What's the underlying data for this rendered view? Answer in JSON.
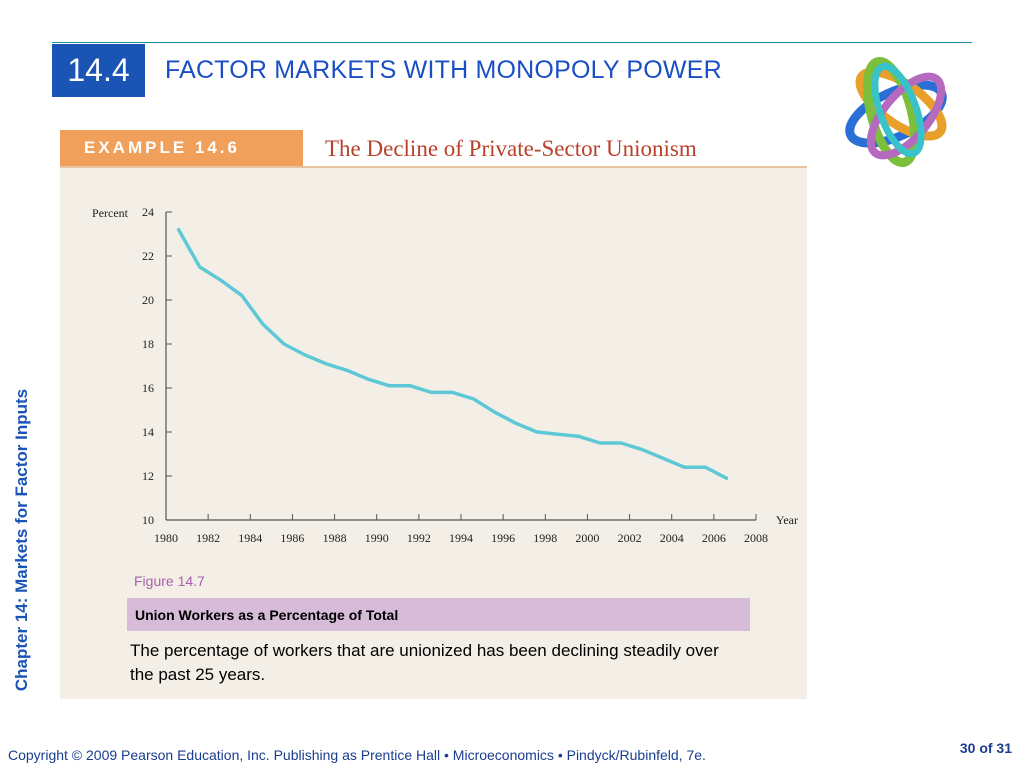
{
  "header": {
    "section": "14.4",
    "title": "FACTOR MARKETS WITH MONOPOLY POWER"
  },
  "sidebar": {
    "chapter": "Chapter 14: Markets for Factor Inputs"
  },
  "example": {
    "tag": "EXAMPLE 14.6",
    "title": "The Decline of Private-Sector Unionism"
  },
  "chart_data": {
    "type": "line",
    "ylabel": "Percent",
    "xlabel": "Year",
    "ylim": [
      10,
      24
    ],
    "xlim": [
      1980,
      2008
    ],
    "y_ticks": [
      10,
      12,
      14,
      16,
      18,
      20,
      22,
      24
    ],
    "x_ticks": [
      1980,
      1982,
      1984,
      1986,
      1988,
      1990,
      1992,
      1994,
      1996,
      1998,
      2000,
      2002,
      2004,
      2006,
      2008
    ],
    "line_color": "#5ec8d6",
    "x": [
      1980.6,
      1981.6,
      1982.6,
      1983.6,
      1984.6,
      1985.6,
      1986.6,
      1987.6,
      1988.6,
      1989.6,
      1990.6,
      1991.6,
      1992.6,
      1993.6,
      1994.6,
      1995.6,
      1996.6,
      1997.6,
      1998.6,
      1999.6,
      2000.6,
      2001.6,
      2002.6,
      2003.6,
      2004.6,
      2005.6,
      2006.6
    ],
    "y": [
      23.2,
      21.5,
      20.9,
      20.2,
      18.9,
      18.0,
      17.5,
      17.1,
      16.8,
      16.4,
      16.1,
      16.1,
      15.8,
      15.8,
      15.5,
      14.9,
      14.4,
      14.0,
      13.9,
      13.8,
      13.5,
      13.5,
      13.2,
      12.8,
      12.4,
      12.4,
      11.9
    ]
  },
  "figure": {
    "label": "Figure 14.7",
    "title": "Union Workers as a Percentage of Total",
    "caption": "The percentage of workers that are unionized has been declining steadily over the past 25 years."
  },
  "footer": {
    "copyright": "Copyright © 2009 Pearson Education, Inc. Publishing as Prentice Hall  •  Microeconomics  •  Pindyck/Rubinfeld, 7e.",
    "page": "30 of 31"
  }
}
